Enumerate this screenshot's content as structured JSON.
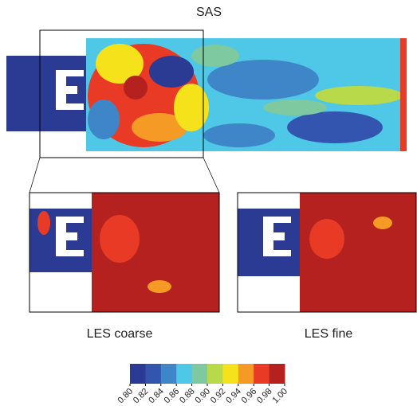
{
  "titles": {
    "top": "SAS",
    "bottom_left": "LES coarse",
    "bottom_right": "LES fine"
  },
  "colorbar": {
    "ticks": [
      {
        "value": 0.8,
        "label": "0.80"
      },
      {
        "value": 0.82,
        "label": "0.82"
      },
      {
        "value": 0.84,
        "label": "0.84"
      },
      {
        "value": 0.86,
        "label": "0.86"
      },
      {
        "value": 0.88,
        "label": "0.88"
      },
      {
        "value": 0.9,
        "label": "0.90"
      },
      {
        "value": 0.92,
        "label": "0.92"
      },
      {
        "value": 0.94,
        "label": "0.94"
      },
      {
        "value": 0.96,
        "label": "0.96"
      },
      {
        "value": 0.98,
        "label": "0.98"
      },
      {
        "value": 1.0,
        "label": "1.00"
      }
    ],
    "colors": [
      "#2b3a93",
      "#3355b0",
      "#3f86c8",
      "#4ec8e6",
      "#7fc9a0",
      "#b8d94a",
      "#f6e21a",
      "#f59a25",
      "#e83a24",
      "#b5211f"
    ]
  }
}
